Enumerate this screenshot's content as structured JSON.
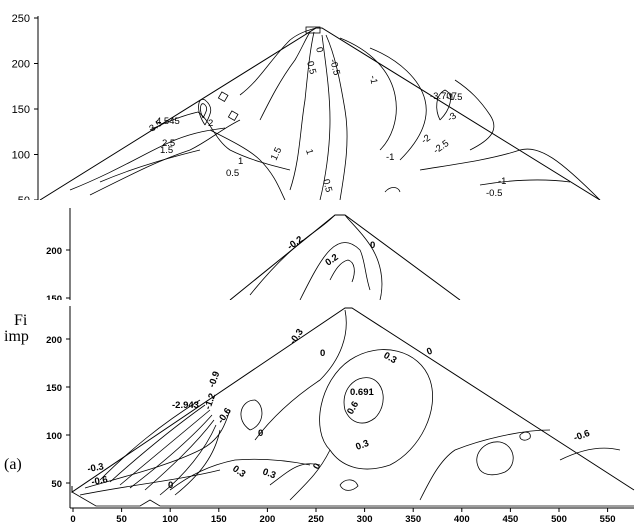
{
  "chart_data": [
    {
      "type": "contour",
      "x_range": [
        0,
        560
      ],
      "y_range": [
        25,
        255
      ],
      "y_ticks": [
        "250",
        "200",
        "150",
        "100",
        "50"
      ],
      "contour_labels": [
        "4.545",
        "3.5",
        "2.5",
        "2",
        "1.5",
        "1",
        "0.5",
        "-0.5",
        "-1",
        "-1.5",
        "-2",
        "-2.5",
        "-3",
        "-3.707",
        "0",
        "0.5",
        "1",
        "1.5",
        "-1",
        "-0.5",
        "0.5",
        "-1"
      ]
    },
    {
      "type": "contour",
      "y_ticks": [
        "200",
        "150"
      ],
      "contour_labels": [
        "-0.2",
        "0",
        "0.2"
      ]
    },
    {
      "type": "contour",
      "x_range": [
        0,
        560
      ],
      "y_range": [
        25,
        240
      ],
      "x_ticks": [
        "0",
        "50",
        "100",
        "150",
        "200",
        "250",
        "300",
        "350",
        "400",
        "450",
        "500",
        "550"
      ],
      "y_ticks": [
        "200",
        "150",
        "100",
        "50"
      ],
      "contour_labels": [
        "-2.943",
        "-0.9",
        "-1.2",
        "-0.6",
        "0",
        "0.3",
        "0",
        "0.3",
        "0.691",
        "0.6",
        "0.3",
        "0",
        "-0.3",
        "0",
        "0.3",
        "-0.6",
        "-0.3",
        "-0.6",
        "0"
      ]
    }
  ],
  "captions": [
    "Fi",
    "imp",
    "(a)"
  ]
}
